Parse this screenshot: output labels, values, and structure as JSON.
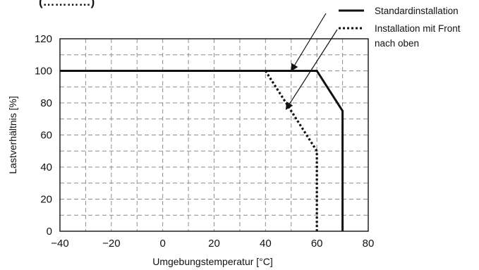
{
  "chart_data": {
    "type": "line",
    "xlabel": "Umgebungstemperatur [°C]",
    "ylabel": "Lastverhältnis [%]",
    "xlim": [
      -40,
      80
    ],
    "ylim": [
      0,
      120
    ],
    "xticks": [
      -40,
      -20,
      0,
      20,
      40,
      60,
      80
    ],
    "yticks": [
      0,
      20,
      40,
      60,
      80,
      100,
      120
    ],
    "x_tick_labels": [
      "−40",
      "−20",
      "0",
      "20",
      "40",
      "60",
      "80"
    ],
    "y_tick_labels": [
      "0",
      "20",
      "40",
      "60",
      "80",
      "100",
      "120"
    ],
    "grid": true,
    "grid_style": "dashed",
    "grid_x_step": 10,
    "grid_y_step": 10,
    "legend_position": "top-right",
    "series": [
      {
        "name": "Standardinstallation",
        "style": "solid",
        "color": "#111111",
        "x": [
          -40,
          60,
          70,
          70
        ],
        "y": [
          100,
          100,
          75,
          0
        ]
      },
      {
        "name": "Installation mit Front nach oben",
        "name_lines": [
          "Installation mit Front",
          "nach oben"
        ],
        "style": "dotted",
        "color": "#111111",
        "x": [
          40,
          60,
          60
        ],
        "y": [
          100,
          50,
          0
        ]
      }
    ],
    "annotation_arrows": [
      {
        "points_to": {
          "x": 50,
          "y": 100
        },
        "series": "Standardinstallation"
      },
      {
        "points_to": {
          "x": 48,
          "y": 76
        },
        "series": "Installation mit Front nach oben"
      }
    ],
    "partial_title_fragment": "(…………)"
  }
}
